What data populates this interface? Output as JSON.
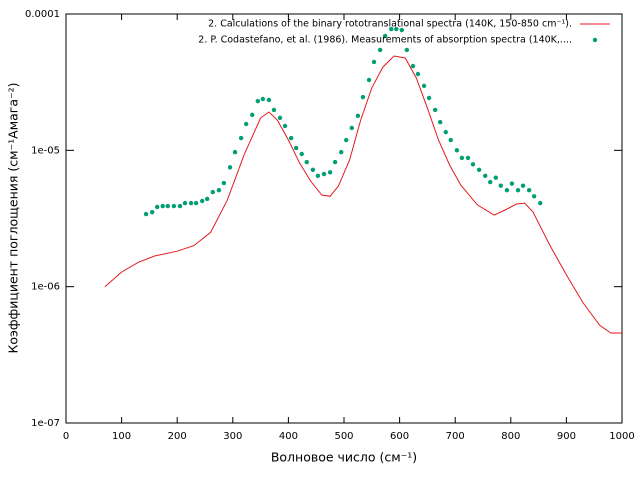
{
  "chart_data": {
    "type": "line",
    "xlabel": "Волновое число (см⁻¹)",
    "ylabel": "Коэффициент поглощения (см⁻¹Амага⁻²)",
    "xlim": [
      0,
      1000
    ],
    "xticks": [
      0,
      100,
      200,
      300,
      400,
      500,
      600,
      700,
      800,
      900,
      1000
    ],
    "ylim": [
      1e-07,
      0.0001
    ],
    "yticks": [
      {
        "value": 1e-07,
        "label": "1e-07"
      },
      {
        "value": 1e-06,
        "label": "1e-06"
      },
      {
        "value": 1e-05,
        "label": "1e-05"
      },
      {
        "value": 0.0001,
        "label": "0.0001"
      }
    ],
    "log_y": true,
    "legend": "top-right",
    "series": [
      {
        "name": "2. Calculations of the binary rototranslational spectra  (140K, 150-850 cm⁻¹).",
        "color": "#e41a1c",
        "style": "line",
        "x": [
          70,
          100,
          130,
          160,
          200,
          230,
          260,
          290,
          320,
          350,
          365,
          380,
          400,
          420,
          440,
          460,
          475,
          490,
          510,
          530,
          550,
          570,
          590,
          610,
          630,
          650,
          670,
          690,
          710,
          740,
          770,
          790,
          810,
          825,
          840,
          870,
          900,
          930,
          960,
          980,
          1000
        ],
        "values": [
          1e-06,
          1.28e-06,
          1.51e-06,
          1.68e-06,
          1.82e-06,
          2e-06,
          2.5e-06,
          4.3e-06,
          9.2e-06,
          1.73e-05,
          1.91e-05,
          1.67e-05,
          1.19e-05,
          8.1e-06,
          5.96e-06,
          4.7e-06,
          4.6e-06,
          5.47e-06,
          8.5e-06,
          1.67e-05,
          2.87e-05,
          4.08e-05,
          4.92e-05,
          4.76e-05,
          3.39e-05,
          2.04e-05,
          1.19e-05,
          7.8e-06,
          5.56e-06,
          3.98e-06,
          3.35e-06,
          3.65e-06,
          4.04e-06,
          4.1e-06,
          3.53e-06,
          2.02e-06,
          1.22e-06,
          7.6e-07,
          5.2e-07,
          4.57e-07,
          4.57e-07
        ]
      },
      {
        "name": "2. P. Codastefano,  et al. (1986). Measurements of absorption spectra (140K,....",
        "color": "#009e73",
        "style": "points",
        "x": [
          144,
          155,
          164,
          174,
          183,
          194,
          205,
          214,
          225,
          234,
          245,
          254,
          264,
          275,
          284,
          295,
          304,
          315,
          324,
          335,
          345,
          354,
          365,
          374,
          385,
          394,
          405,
          414,
          424,
          433,
          444,
          453,
          464,
          475,
          484,
          495,
          504,
          514,
          525,
          534,
          545,
          554,
          565,
          574,
          585,
          594,
          604,
          613,
          624,
          633,
          644,
          653,
          664,
          673,
          683,
          692,
          703,
          712,
          723,
          732,
          743,
          754,
          763,
          773,
          782,
          793,
          802,
          813,
          822,
          833,
          842,
          853
        ],
        "values": [
          3.41e-06,
          3.52e-06,
          3.84e-06,
          3.9e-06,
          3.9e-06,
          3.9e-06,
          3.9e-06,
          4.1e-06,
          4.1e-06,
          4.1e-06,
          4.25e-06,
          4.4e-06,
          4.94e-06,
          5.1e-06,
          5.75e-06,
          7.5e-06,
          9.7e-06,
          1.23e-05,
          1.56e-05,
          1.82e-05,
          2.3e-05,
          2.38e-05,
          2.34e-05,
          1.98e-05,
          1.73e-05,
          1.51e-05,
          1.23e-05,
          1.04e-05,
          9.4e-06,
          8.2e-06,
          7.2e-06,
          6.5e-06,
          6.7e-06,
          6.9e-06,
          8.2e-06,
          9.7e-06,
          1.19e-05,
          1.46e-05,
          1.79e-05,
          2.46e-05,
          3.28e-05,
          4.45e-05,
          5.45e-05,
          6.9e-05,
          7.76e-05,
          7.76e-05,
          7.63e-05,
          5.45e-05,
          4.15e-05,
          3.63e-05,
          2.97e-05,
          2.42e-05,
          1.98e-05,
          1.61e-05,
          1.36e-05,
          1.19e-05,
          1e-05,
          8.8e-06,
          8.8e-06,
          7.9e-06,
          7.2e-06,
          6.5e-06,
          5.85e-06,
          6.3e-06,
          5.5e-06,
          5.1e-06,
          5.7e-06,
          5.1e-06,
          5.5e-06,
          5.1e-06,
          4.6e-06,
          4.1e-06
        ]
      }
    ]
  }
}
